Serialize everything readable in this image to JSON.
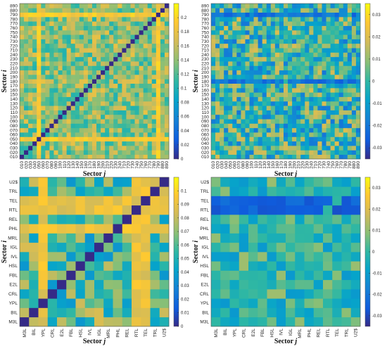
{
  "chart_data": [
    {
      "type": "heatmap",
      "x_labels": [
        "010",
        "020",
        "030",
        "040",
        "050",
        "060",
        "070",
        "080",
        "090",
        "100",
        "110",
        "120",
        "130",
        "140",
        "150",
        "160",
        "170",
        "180",
        "190",
        "200",
        "210",
        "220",
        "230",
        "240",
        "710",
        "720",
        "730",
        "740",
        "750",
        "760",
        "770",
        "780",
        "790",
        "880",
        "890"
      ],
      "y_labels": [
        "010",
        "020",
        "030",
        "040",
        "050",
        "060",
        "070",
        "080",
        "090",
        "100",
        "110",
        "120",
        "130",
        "140",
        "150",
        "160",
        "170",
        "180",
        "190",
        "200",
        "210",
        "220",
        "230",
        "240",
        "710",
        "720",
        "730",
        "740",
        "750",
        "760",
        "770",
        "780",
        "790",
        "880",
        "890"
      ],
      "xlabel_main": "Sector",
      "xlabel_var": "j",
      "ylabel_main": "Sector",
      "ylabel_var": "i",
      "colorbar_ticks": [
        "0",
        "0.02",
        "0.04",
        "0.06",
        "0.08",
        "0.1",
        "0.12",
        "0.14",
        "0.16",
        "0.18",
        "0.2"
      ],
      "color_range": [
        0,
        0.22
      ],
      "diagonal_value": 0,
      "base_value": 0.14,
      "variation": 0.04,
      "strong_rows": [
        "050",
        "790"
      ],
      "strong_cols": [
        "050",
        "790"
      ],
      "strong_value": 0.19,
      "colormap": "parula"
    },
    {
      "type": "heatmap",
      "x_labels": [
        "010",
        "020",
        "030",
        "040",
        "050",
        "060",
        "070",
        "080",
        "090",
        "100",
        "110",
        "120",
        "130",
        "140",
        "150",
        "160",
        "170",
        "180",
        "190",
        "200",
        "210",
        "220",
        "230",
        "240",
        "710",
        "720",
        "730",
        "740",
        "750",
        "760",
        "770",
        "780",
        "790",
        "880",
        "890"
      ],
      "y_labels": [
        "010",
        "020",
        "030",
        "040",
        "050",
        "060",
        "070",
        "080",
        "090",
        "100",
        "110",
        "120",
        "130",
        "140",
        "150",
        "160",
        "170",
        "180",
        "190",
        "200",
        "210",
        "220",
        "230",
        "240",
        "710",
        "720",
        "730",
        "740",
        "750",
        "760",
        "770",
        "780",
        "790",
        "880",
        "890"
      ],
      "xlabel_main": "Sector",
      "xlabel_var": "j",
      "ylabel_main": "Sector",
      "ylabel_var": "i",
      "colorbar_ticks": [
        "-0.03",
        "-0.02",
        "-0.01",
        "0",
        "0.01",
        "0.02",
        "0.03"
      ],
      "color_range": [
        -0.035,
        0.035
      ],
      "diagonal_value": 0,
      "base_value": 0.0,
      "variation": 0.02,
      "strong_rows": [
        "790",
        "180"
      ],
      "strong_cols": [],
      "strong_value": -0.02,
      "colormap": "parula"
    },
    {
      "type": "heatmap",
      "x_labels": [
        "M3L",
        "BIL",
        "YPL",
        "CRL",
        "E2L",
        "FBL",
        "HSL",
        "IVL",
        "IGL",
        "MRL",
        "PHL",
        "REL",
        "RTL",
        "TEL",
        "TRL",
        "U2$"
      ],
      "y_labels": [
        "M3L",
        "BIL",
        "YPL",
        "CRL",
        "E2L",
        "FBL",
        "HSL",
        "IVL",
        "IGL",
        "MRL",
        "PHL",
        "REL",
        "RTL",
        "TEL",
        "TRL",
        "U2$"
      ],
      "xlabel_main": "Sector",
      "xlabel_var": "j",
      "ylabel_main": "Sector",
      "ylabel_var": "i",
      "colorbar_ticks": [
        "0",
        "0.01",
        "0.02",
        "0.03",
        "0.04",
        "0.05",
        "0.06",
        "0.07",
        "0.08",
        "0.09",
        "0.1"
      ],
      "color_range": [
        0,
        0.11
      ],
      "diagonal_value": 0,
      "base_value": 0.06,
      "variation": 0.025,
      "strong_rows": [
        "TEL",
        "RTL",
        "PHL"
      ],
      "strong_cols": [
        "RTL",
        "TEL",
        "YPL"
      ],
      "strong_value": 0.09,
      "colormap": "parula"
    },
    {
      "type": "heatmap",
      "x_labels": [
        "M3L",
        "BIL",
        "YPL",
        "CRL",
        "E2L",
        "FBL",
        "HSL",
        "IVL",
        "IGL",
        "MRL",
        "PHL",
        "REL",
        "RTL",
        "TEL",
        "TRL",
        "U2$"
      ],
      "y_labels": [
        "M3L",
        "BIL",
        "YPL",
        "CRL",
        "E2L",
        "FBL",
        "HSL",
        "IVL",
        "IGL",
        "MRL",
        "PHL",
        "REL",
        "RTL",
        "TEL",
        "TRL",
        "U2$"
      ],
      "xlabel_main": "Sector",
      "xlabel_var": "j",
      "ylabel_main": "Sector",
      "ylabel_var": "i",
      "colorbar_ticks": [
        "-0.03",
        "-0.02",
        "-0.01",
        "0",
        "0.01",
        "0.02",
        "0.03"
      ],
      "color_range": [
        -0.035,
        0.035
      ],
      "diagonal_value": 0,
      "base_value": 0.0,
      "variation": 0.012,
      "strong_rows": [
        "TEL",
        "RTL"
      ],
      "strong_cols": [],
      "strong_value": -0.025,
      "colormap": "parula"
    }
  ]
}
